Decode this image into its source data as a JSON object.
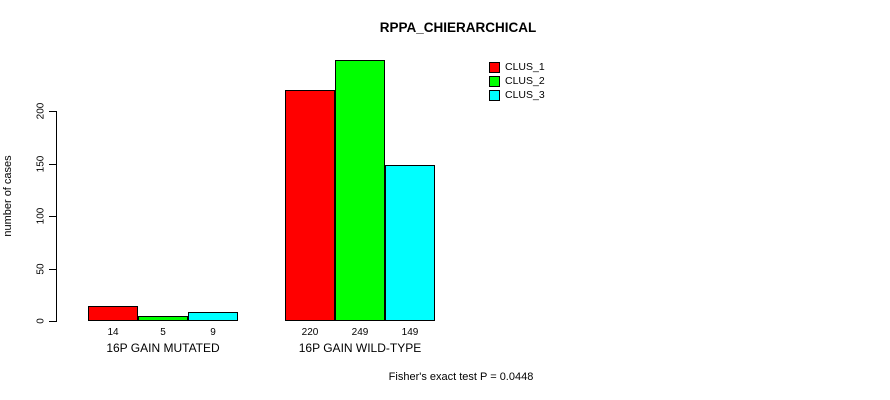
{
  "chart_data": {
    "type": "bar",
    "title": "RPPA_CHIERARCHICAL",
    "ylabel": "number of cases",
    "xlabel": "",
    "yticks": [
      0,
      50,
      100,
      150,
      200
    ],
    "ylim": [
      0,
      250
    ],
    "grid": false,
    "legend_position": "top-right",
    "categories": [
      "16P GAIN MUTATED",
      "16P GAIN WILD-TYPE"
    ],
    "series": [
      {
        "name": "CLUS_1",
        "color": "#FF0000",
        "values": [
          14,
          220
        ]
      },
      {
        "name": "CLUS_2",
        "color": "#00FF00",
        "values": [
          5,
          249
        ]
      },
      {
        "name": "CLUS_3",
        "color": "#00FFFF",
        "values": [
          9,
          149
        ]
      }
    ],
    "bar_value_labels": [
      [
        "14",
        "5",
        "9"
      ],
      [
        "220",
        "249",
        "149"
      ]
    ],
    "footnote": "Fisher's exact test P = 0.0448"
  }
}
